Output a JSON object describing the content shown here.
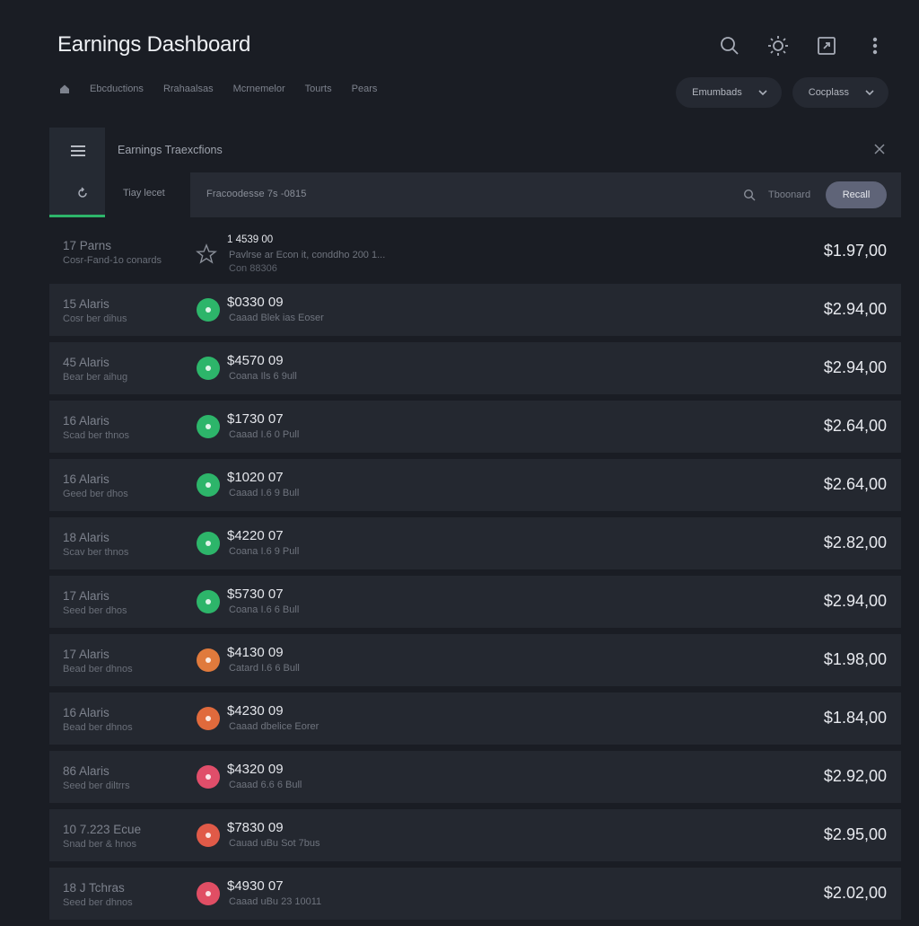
{
  "header": {
    "title": "Earnings Dashboard",
    "icons": [
      "search-icon",
      "brightness-icon",
      "export-icon",
      "more-icon"
    ]
  },
  "nav": {
    "items": [
      "Ebcductions",
      "Rrahaalsas",
      "Mcrnemelor",
      "Tourts",
      "Pears"
    ]
  },
  "dropdowns": [
    {
      "label": "Emumbads"
    },
    {
      "label": "Cocplass"
    }
  ],
  "panel": {
    "title": "Earnings Traexcfions",
    "tab_label": "Tiay lecet",
    "filter_text": "Fracoodesse   7s  -0815",
    "search_label": "Tboonard",
    "button_label": "Recall"
  },
  "rows": [
    {
      "num": "17  Parns",
      "sub": "Cosr-Fand-1o conards",
      "amount": "1 4539 00",
      "desc": "Pavlrse ar Econ it, conddho 200 1...",
      "desc2": "Con 88306",
      "value": "$1.97,00",
      "marker": "star"
    },
    {
      "num": "15  Alaris",
      "sub": "Cosr ber dihus",
      "amount": "$0330 09",
      "desc": "Caaad Blek ias Eoser",
      "value": "$2.94,00",
      "color": "#2db56a"
    },
    {
      "num": "45  Alaris",
      "sub": "Bear ber aihug",
      "amount": "$4570 09",
      "desc": "Coana Ils 6 9ull",
      "value": "$2.94,00",
      "color": "#2db56a"
    },
    {
      "num": "16  Alaris",
      "sub": "Scad ber thnos",
      "amount": "$1730 07",
      "desc": "Caaad I.6 0 Pull",
      "value": "$2.64,00",
      "color": "#2db56a"
    },
    {
      "num": "16  Alaris",
      "sub": "Geed ber dhos",
      "amount": "$1020 07",
      "desc": "Caaad I.6 9 Bull",
      "value": "$2.64,00",
      "color": "#2db56a"
    },
    {
      "num": "18  Alaris",
      "sub": "Scav ber thnos",
      "amount": "$4220 07",
      "desc": "Coana I.6 9 Pull",
      "value": "$2.82,00",
      "color": "#2db56a"
    },
    {
      "num": "17  Alaris",
      "sub": "Seed ber dhos",
      "amount": "$5730 07",
      "desc": "Coana I.6 6 Bull",
      "value": "$2.94,00",
      "color": "#2db56a"
    },
    {
      "num": "17  Alaris",
      "sub": "Bead ber dhnos",
      "amount": "$4130 09",
      "desc": "Catard I.6 6 Bull",
      "value": "$1.98,00",
      "color": "#e07a3c"
    },
    {
      "num": "16  Alaris",
      "sub": "Bead ber dhnos",
      "amount": "$4230 09",
      "desc": "Caaad dbelice Eorer",
      "value": "$1.84,00",
      "color": "#e06a3c"
    },
    {
      "num": "86  Alaris",
      "sub": "Seed ber diltrrs",
      "amount": "$4320 09",
      "desc": "Caaad 6.6 6 Bull",
      "value": "$2.92,00",
      "color": "#e04e6a"
    },
    {
      "num": "10  7.223  Ecue",
      "sub": "Snad ber & hnos",
      "amount": "$7830 09",
      "desc": "Cauad uBu Sot 7bus",
      "value": "$2.95,00",
      "color": "#e05a48"
    },
    {
      "num": "18  J Tchras",
      "sub": "Seed ber dhnos",
      "amount": "$4930 07",
      "desc": "Caaad uBu 23 10011",
      "value": "$2.02,00",
      "color": "#e04e64"
    }
  ]
}
